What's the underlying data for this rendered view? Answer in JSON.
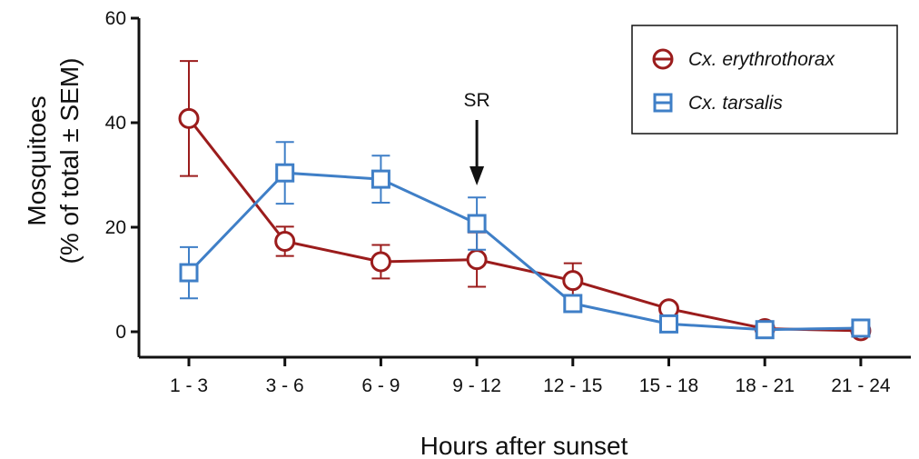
{
  "chart_data": {
    "type": "line",
    "xlabel": "Hours after sunset",
    "ylabel_line1": "Mosquitoes",
    "ylabel_line2": "(% of total ± SEM)",
    "categories": [
      "1 - 3",
      "3 - 6",
      "6 - 9",
      "9 - 12",
      "12 - 15",
      "15 - 18",
      "18 - 21",
      "21 - 24"
    ],
    "ylim": [
      0,
      60
    ],
    "yticks": [
      0,
      20,
      40,
      60
    ],
    "grid": false,
    "legend_position": "top-right",
    "series": [
      {
        "name": "Cx. erythrothorax",
        "color": "#9b1c1c",
        "marker": "circle",
        "values": [
          40.8,
          17.3,
          13.4,
          13.8,
          9.8,
          4.4,
          0.6,
          0.2
        ],
        "sem": [
          11.0,
          2.8,
          3.2,
          5.2,
          3.3,
          0.8,
          0.4,
          0.3
        ]
      },
      {
        "name": "Cx. tarsalis",
        "color": "#3f7fc7",
        "marker": "square",
        "values": [
          11.3,
          30.4,
          29.2,
          20.7,
          5.4,
          1.5,
          0.4,
          0.7
        ],
        "sem": [
          4.9,
          5.9,
          4.5,
          5.0,
          1.3,
          0.4,
          0.3,
          0.3
        ]
      }
    ],
    "annotations": [
      {
        "label": "SR",
        "category": "9 - 12"
      }
    ]
  }
}
